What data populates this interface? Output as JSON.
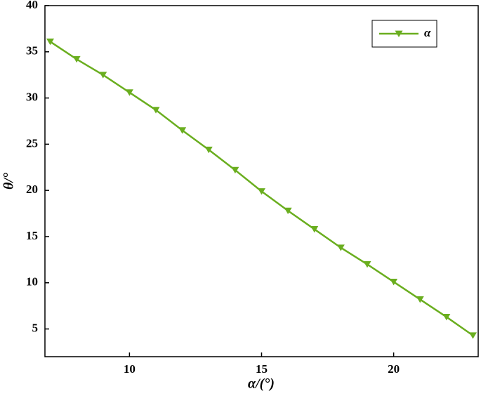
{
  "chart_data": {
    "type": "line",
    "x_label": "α/(°)",
    "y_label": "θ/°",
    "x": [
      7,
      8,
      9,
      10,
      11,
      12,
      13,
      14,
      15,
      16,
      17,
      18,
      19,
      20,
      21,
      22,
      23
    ],
    "series": [
      {
        "name": "α",
        "color": "#6aae1f",
        "values": [
          36.1,
          34.2,
          32.5,
          30.6,
          28.7,
          26.5,
          24.4,
          22.2,
          19.9,
          17.8,
          15.8,
          13.8,
          12.0,
          10.1,
          8.2,
          6.3,
          4.3
        ]
      }
    ],
    "xlim": [
      6.8,
      23.2
    ],
    "xticks": [
      10,
      15,
      20
    ],
    "ylim": [
      2,
      40
    ],
    "yticks": [
      5,
      10,
      15,
      20,
      25,
      30,
      35,
      40
    ],
    "legend": "upper right"
  }
}
